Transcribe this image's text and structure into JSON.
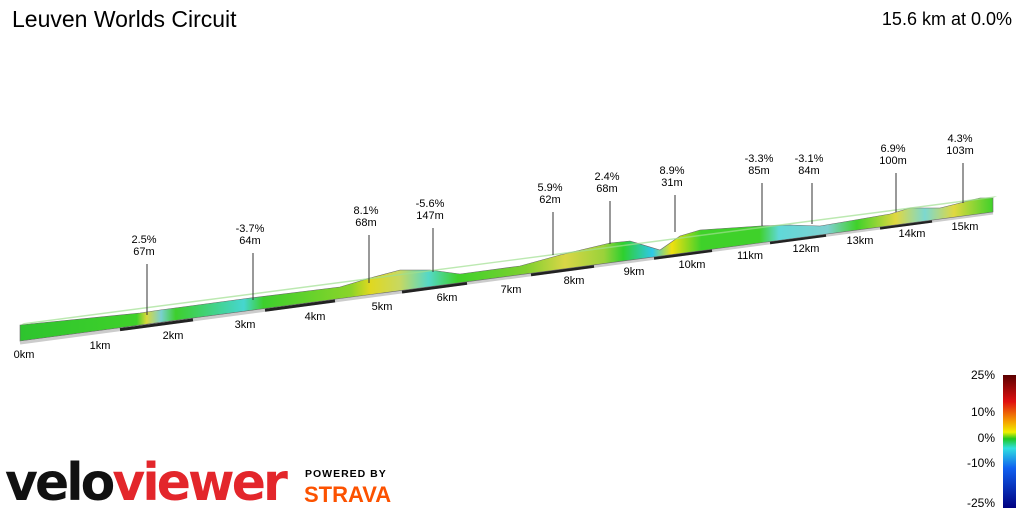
{
  "header": {
    "title": "Leuven Worlds Circuit",
    "summary": "15.6 km at 0.0%"
  },
  "annotations": [
    {
      "grade": "2.5%",
      "length": "67m"
    },
    {
      "grade": "-3.7%",
      "length": "64m"
    },
    {
      "grade": "8.1%",
      "length": "68m"
    },
    {
      "grade": "-5.6%",
      "length": "147m"
    },
    {
      "grade": "5.9%",
      "length": "62m"
    },
    {
      "grade": "2.4%",
      "length": "68m"
    },
    {
      "grade": "8.9%",
      "length": "31m"
    },
    {
      "grade": "-3.3%",
      "length": "85m"
    },
    {
      "grade": "-3.1%",
      "length": "84m"
    },
    {
      "grade": "6.9%",
      "length": "100m"
    },
    {
      "grade": "4.3%",
      "length": "103m"
    }
  ],
  "distance_labels": [
    "0km",
    "1km",
    "2km",
    "3km",
    "4km",
    "5km",
    "6km",
    "7km",
    "8km",
    "9km",
    "10km",
    "11km",
    "12km",
    "13km",
    "14km",
    "15km"
  ],
  "legend": {
    "labels": [
      "25%",
      "10%",
      "0%",
      "-10%",
      "-25%"
    ]
  },
  "branding": {
    "logo_parts": [
      "velo",
      "viewer"
    ],
    "powered_by": "POWERED BY",
    "partner": "STRAVA"
  }
}
